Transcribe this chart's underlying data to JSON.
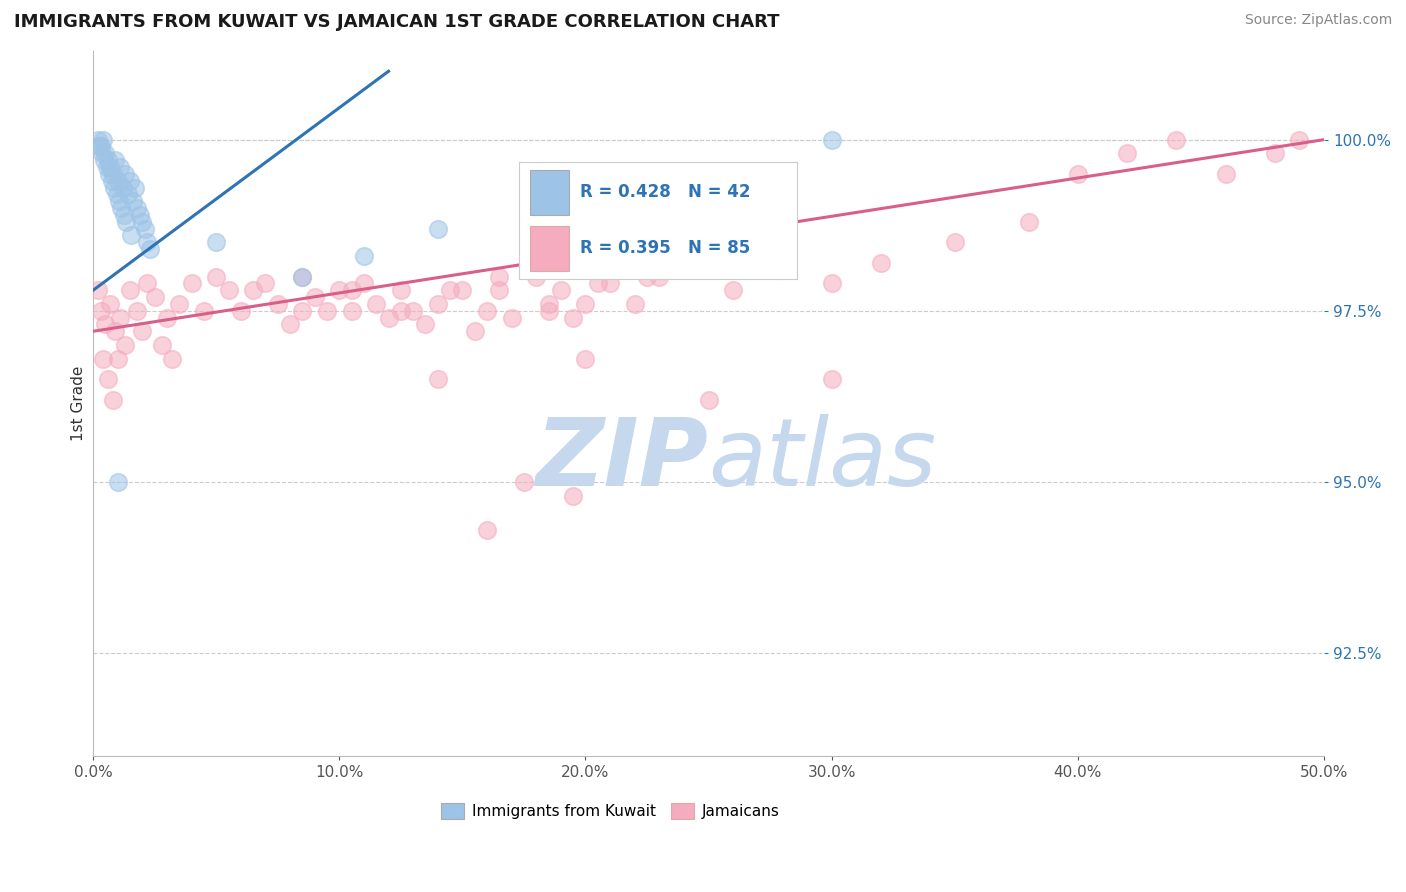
{
  "title": "IMMIGRANTS FROM KUWAIT VS JAMAICAN 1ST GRADE CORRELATION CHART",
  "source_text": "Source: ZipAtlas.com",
  "ylabel": "1st Grade",
  "xlim": [
    0.0,
    50.0
  ],
  "ylim": [
    91.0,
    101.3
  ],
  "yticks": [
    92.5,
    95.0,
    97.5,
    100.0
  ],
  "ytick_labels": [
    "92.5%",
    "95.0%",
    "97.5%",
    "100.0%"
  ],
  "xticks": [
    0.0,
    10.0,
    20.0,
    30.0,
    40.0,
    50.0
  ],
  "xtick_labels": [
    "0.0%",
    "10.0%",
    "20.0%",
    "30.0%",
    "40.0%",
    "50.0%"
  ],
  "legend_r_blue": "R = 0.428",
  "legend_n_blue": "N = 42",
  "legend_r_pink": "R = 0.395",
  "legend_n_pink": "N = 85",
  "legend_label_blue": "Immigrants from Kuwait",
  "legend_label_pink": "Jamaicans",
  "blue_color": "#9DC3E6",
  "pink_color": "#F4ACBE",
  "trend_blue_color": "#2E74B5",
  "trend_pink_color": "#D95F8A",
  "watermark_top": "ZIP",
  "watermark_bottom": "atlas",
  "watermark_color": "#C5D8EE",
  "blue_scatter_x": [
    0.2,
    0.3,
    0.4,
    0.5,
    0.6,
    0.7,
    0.8,
    0.9,
    1.0,
    1.1,
    1.2,
    1.3,
    1.4,
    1.5,
    1.6,
    1.7,
    1.8,
    1.9,
    2.0,
    2.1,
    2.2,
    2.3,
    0.35,
    0.55,
    0.75,
    0.95,
    1.15,
    1.35,
    1.55,
    0.25,
    0.45,
    0.65,
    0.85,
    1.05,
    1.25,
    5.0,
    8.5,
    11.0,
    14.0,
    18.0,
    30.0,
    1.0
  ],
  "blue_scatter_y": [
    100.0,
    99.9,
    100.0,
    99.8,
    99.7,
    99.6,
    99.5,
    99.7,
    99.4,
    99.6,
    99.3,
    99.5,
    99.2,
    99.4,
    99.1,
    99.3,
    99.0,
    98.9,
    98.8,
    98.7,
    98.5,
    98.4,
    99.8,
    99.6,
    99.4,
    99.2,
    99.0,
    98.8,
    98.6,
    99.9,
    99.7,
    99.5,
    99.3,
    99.1,
    98.9,
    98.5,
    98.0,
    98.3,
    98.7,
    99.0,
    100.0,
    95.0
  ],
  "pink_scatter_x": [
    0.2,
    0.3,
    0.5,
    0.7,
    0.9,
    1.1,
    1.3,
    1.5,
    1.8,
    2.0,
    2.2,
    2.5,
    3.0,
    3.5,
    4.0,
    5.0,
    5.5,
    6.0,
    7.0,
    7.5,
    8.0,
    8.5,
    9.0,
    9.5,
    10.0,
    10.5,
    11.0,
    11.5,
    12.0,
    12.5,
    13.0,
    13.5,
    14.0,
    15.0,
    15.5,
    16.0,
    16.5,
    17.0,
    18.0,
    18.5,
    19.0,
    19.5,
    20.0,
    21.0,
    22.0,
    23.0,
    24.0,
    25.0,
    26.0,
    27.0,
    28.0,
    30.0,
    32.0,
    35.0,
    38.0,
    40.0,
    42.0,
    44.0,
    46.0,
    48.0,
    49.0,
    0.4,
    0.6,
    0.8,
    1.0,
    2.8,
    3.2,
    4.5,
    6.5,
    8.5,
    10.5,
    12.5,
    14.5,
    16.5,
    18.5,
    20.5,
    22.5,
    24.5,
    14.0,
    20.0,
    25.0,
    30.0,
    16.0,
    17.5,
    19.5
  ],
  "pink_scatter_y": [
    97.8,
    97.5,
    97.3,
    97.6,
    97.2,
    97.4,
    97.0,
    97.8,
    97.5,
    97.2,
    97.9,
    97.7,
    97.4,
    97.6,
    97.9,
    98.0,
    97.8,
    97.5,
    97.9,
    97.6,
    97.3,
    98.0,
    97.7,
    97.5,
    97.8,
    97.5,
    97.9,
    97.6,
    97.4,
    97.8,
    97.5,
    97.3,
    97.6,
    97.8,
    97.2,
    97.5,
    97.8,
    97.4,
    98.0,
    97.5,
    97.8,
    97.4,
    97.6,
    97.9,
    97.6,
    98.0,
    98.2,
    98.5,
    97.8,
    98.3,
    98.1,
    97.9,
    98.2,
    98.5,
    98.8,
    99.5,
    99.8,
    100.0,
    99.5,
    99.8,
    100.0,
    96.8,
    96.5,
    96.2,
    96.8,
    97.0,
    96.8,
    97.5,
    97.8,
    97.5,
    97.8,
    97.5,
    97.8,
    98.0,
    97.6,
    97.9,
    98.0,
    98.3,
    96.5,
    96.8,
    96.2,
    96.5,
    94.3,
    95.0,
    94.8
  ],
  "blue_trend_x": [
    0.0,
    12.0
  ],
  "blue_trend_y": [
    97.8,
    101.0
  ],
  "pink_trend_x": [
    0.0,
    50.0
  ],
  "pink_trend_y": [
    97.2,
    100.0
  ]
}
